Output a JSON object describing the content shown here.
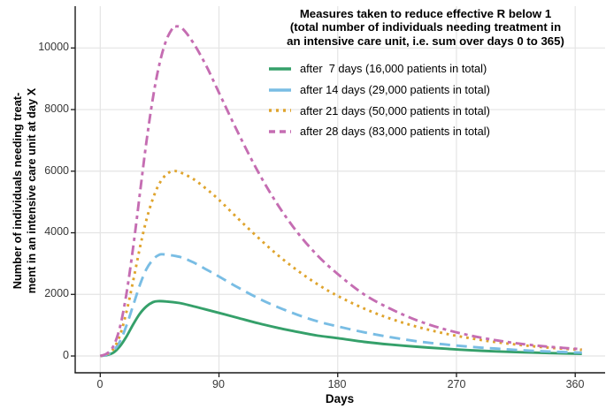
{
  "figure": {
    "title_lines": [
      "Measures taken to reduce effective R below 1",
      "(total number of individuals needing treatment in",
      "an intensive care unit, i.e. sum over days 0 to 365)"
    ]
  },
  "legend": {
    "items": [
      {
        "label": "after  7 days (16,000 patients in total)",
        "color": "#35a06a",
        "linestyle": "solid"
      },
      {
        "label": "after 14 days (29,000 patients in total)",
        "color": "#79bde4",
        "linestyle": "dashed"
      },
      {
        "label": "after 21 days (50,000 patients in total)",
        "color": "#dfa42d",
        "linestyle": "dotted"
      },
      {
        "label": "after 28 days (83,000 patients in total)",
        "color": "#c56db2",
        "linestyle": "dashdot"
      }
    ]
  },
  "y_axis": {
    "title_line1": "Number of individuals needing treat-",
    "title_line2": "ment in an intensive care unit at day X",
    "tick_labels": [
      "0",
      "2000",
      "4000",
      "6000",
      "8000",
      "10000"
    ]
  },
  "x_axis": {
    "title": "Days",
    "tick_labels": [
      "0",
      "90",
      "180",
      "270",
      "360"
    ]
  },
  "chart_data": {
    "type": "line",
    "title": "Measures taken to reduce effective R below 1 (total number of individuals needing treatment in an intensive care unit, i.e. sum over days 0 to 365)",
    "xlabel": "Days",
    "ylabel": "Number of individuals needing treatment in an intensive care unit at day X",
    "xlim": [
      0,
      365
    ],
    "ylim": [
      0,
      11000
    ],
    "x_ticks": [
      0,
      90,
      180,
      270,
      360
    ],
    "y_ticks": [
      0,
      2000,
      4000,
      6000,
      8000,
      10000
    ],
    "grid": true,
    "legend_position": "top-right-inside",
    "series": [
      {
        "name": "after 7 days",
        "total_patients_label": "16,000 patients in total",
        "color": "#35a06a",
        "linestyle": "solid",
        "peak": {
          "day": 44,
          "value": 1780
        },
        "points": [
          [
            0,
            0
          ],
          [
            5,
            30
          ],
          [
            10,
            110
          ],
          [
            15,
            320
          ],
          [
            20,
            640
          ],
          [
            25,
            1030
          ],
          [
            30,
            1370
          ],
          [
            35,
            1610
          ],
          [
            40,
            1750
          ],
          [
            44,
            1780
          ],
          [
            50,
            1770
          ],
          [
            60,
            1720
          ],
          [
            70,
            1620
          ],
          [
            80,
            1510
          ],
          [
            90,
            1400
          ],
          [
            105,
            1230
          ],
          [
            120,
            1060
          ],
          [
            135,
            910
          ],
          [
            150,
            780
          ],
          [
            165,
            660
          ],
          [
            180,
            580
          ],
          [
            200,
            460
          ],
          [
            220,
            370
          ],
          [
            240,
            300
          ],
          [
            260,
            240
          ],
          [
            280,
            190
          ],
          [
            300,
            150
          ],
          [
            320,
            120
          ],
          [
            340,
            95
          ],
          [
            365,
            70
          ]
        ]
      },
      {
        "name": "after 14 days",
        "total_patients_label": "29,000 patients in total",
        "color": "#79bde4",
        "linestyle": "dashed",
        "peak": {
          "day": 48,
          "value": 3300
        },
        "points": [
          [
            0,
            0
          ],
          [
            5,
            45
          ],
          [
            10,
            170
          ],
          [
            15,
            480
          ],
          [
            20,
            1000
          ],
          [
            25,
            1650
          ],
          [
            30,
            2300
          ],
          [
            35,
            2820
          ],
          [
            40,
            3130
          ],
          [
            44,
            3270
          ],
          [
            48,
            3300
          ],
          [
            60,
            3220
          ],
          [
            70,
            3050
          ],
          [
            80,
            2820
          ],
          [
            90,
            2580
          ],
          [
            105,
            2210
          ],
          [
            120,
            1870
          ],
          [
            135,
            1580
          ],
          [
            150,
            1330
          ],
          [
            165,
            1120
          ],
          [
            180,
            960
          ],
          [
            200,
            770
          ],
          [
            220,
            610
          ],
          [
            240,
            480
          ],
          [
            260,
            380
          ],
          [
            280,
            300
          ],
          [
            300,
            240
          ],
          [
            320,
            185
          ],
          [
            340,
            145
          ],
          [
            365,
            110
          ]
        ]
      },
      {
        "name": "after 21 days",
        "total_patients_label": "50,000 patients in total",
        "color": "#dfa42d",
        "linestyle": "dotted",
        "peak": {
          "day": 55,
          "value": 6000
        },
        "points": [
          [
            0,
            0
          ],
          [
            5,
            60
          ],
          [
            10,
            230
          ],
          [
            15,
            680
          ],
          [
            20,
            1450
          ],
          [
            25,
            2450
          ],
          [
            30,
            3500
          ],
          [
            35,
            4420
          ],
          [
            40,
            5120
          ],
          [
            45,
            5610
          ],
          [
            50,
            5890
          ],
          [
            55,
            6000
          ],
          [
            60,
            5970
          ],
          [
            70,
            5760
          ],
          [
            80,
            5440
          ],
          [
            90,
            5070
          ],
          [
            105,
            4440
          ],
          [
            120,
            3830
          ],
          [
            135,
            3260
          ],
          [
            150,
            2760
          ],
          [
            165,
            2320
          ],
          [
            180,
            1950
          ],
          [
            200,
            1540
          ],
          [
            220,
            1210
          ],
          [
            240,
            950
          ],
          [
            260,
            740
          ],
          [
            280,
            580
          ],
          [
            300,
            450
          ],
          [
            320,
            350
          ],
          [
            340,
            270
          ],
          [
            365,
            200
          ]
        ]
      },
      {
        "name": "after 28 days",
        "total_patients_label": "83,000 patients in total",
        "color": "#c56db2",
        "linestyle": "dashdot",
        "peak": {
          "day": 57,
          "value": 10700
        },
        "points": [
          [
            0,
            0
          ],
          [
            5,
            80
          ],
          [
            10,
            320
          ],
          [
            15,
            950
          ],
          [
            20,
            2050
          ],
          [
            25,
            3550
          ],
          [
            30,
            5250
          ],
          [
            35,
            6950
          ],
          [
            40,
            8400
          ],
          [
            45,
            9500
          ],
          [
            50,
            10250
          ],
          [
            55,
            10650
          ],
          [
            57,
            10700
          ],
          [
            62,
            10640
          ],
          [
            70,
            10200
          ],
          [
            80,
            9450
          ],
          [
            90,
            8550
          ],
          [
            105,
            7200
          ],
          [
            120,
            5950
          ],
          [
            135,
            4880
          ],
          [
            150,
            3980
          ],
          [
            165,
            3250
          ],
          [
            180,
            2660
          ],
          [
            200,
            2000
          ],
          [
            220,
            1530
          ],
          [
            240,
            1160
          ],
          [
            260,
            880
          ],
          [
            280,
            670
          ],
          [
            300,
            510
          ],
          [
            320,
            390
          ],
          [
            340,
            300
          ],
          [
            365,
            220
          ]
        ]
      }
    ]
  }
}
